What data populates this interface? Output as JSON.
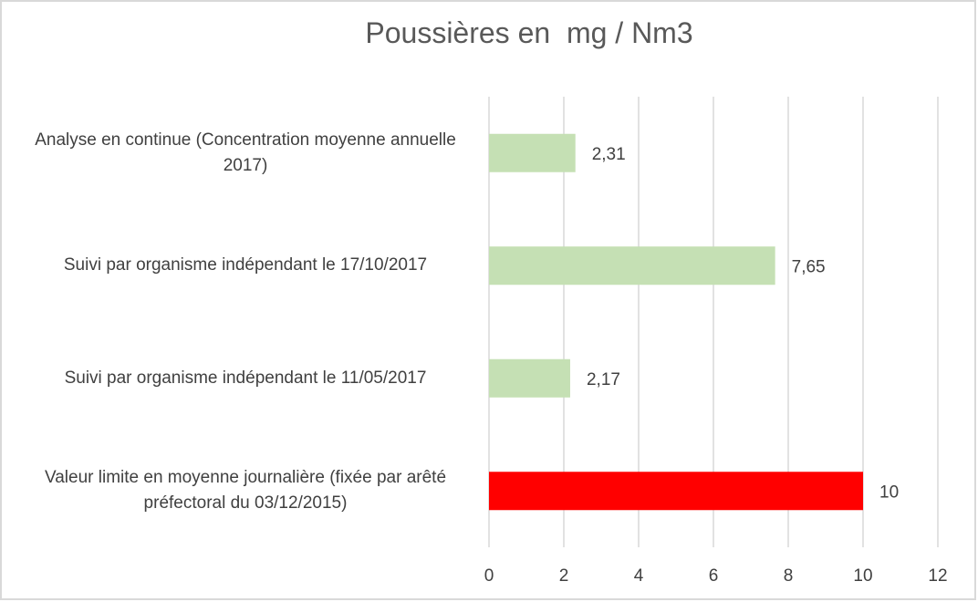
{
  "chart_data": {
    "type": "barh",
    "title": "Poussières en  mg / Nm3",
    "categories": [
      "Analyse en continue (Concentration moyenne annuelle 2017)",
      "Suivi par organisme indépendant le 17/10/2017",
      "Suivi par organisme indépendant le 11/05/2017",
      "Valeur limite en moyenne journalière  (fixée par arêté préfectoral du 03/12/2015)"
    ],
    "values": [
      2.31,
      7.65,
      2.17,
      10
    ],
    "value_labels": [
      "2,31",
      "7,65",
      "2,17",
      "10"
    ],
    "colors": [
      "#c5e0b4",
      "#c5e0b4",
      "#c5e0b4",
      "#ff0000"
    ],
    "xlim": [
      0,
      12
    ],
    "xticks": [
      0,
      2,
      4,
      6,
      8,
      10,
      12
    ],
    "grid": true
  }
}
